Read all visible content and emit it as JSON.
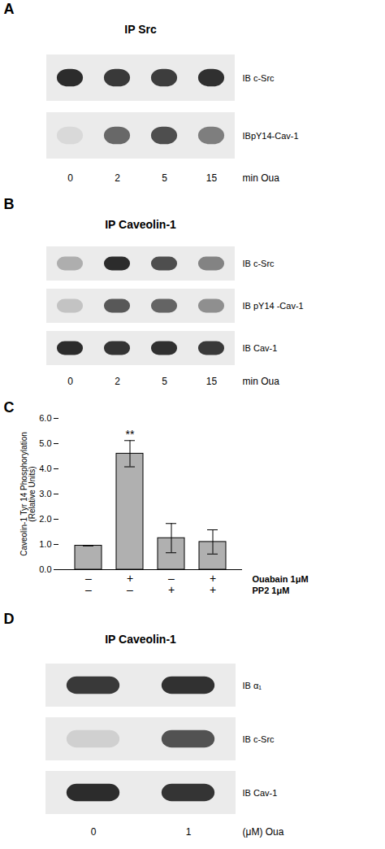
{
  "chart_data": [
    {
      "type": "blot",
      "title": "IP Src",
      "categories": [
        "0",
        "2",
        "5",
        "15"
      ],
      "xlabel": "min Oua",
      "color": "#111111",
      "series": [
        {
          "name": "IB c-Src",
          "values": [
            0.88,
            0.82,
            0.8,
            0.86
          ]
        },
        {
          "name": "IBpY14-Cav-1",
          "values": [
            0.08,
            0.6,
            0.72,
            0.5
          ]
        }
      ],
      "annotations": [
        {
          "text": "A"
        }
      ]
    },
    {
      "type": "blot",
      "title": "IP Caveolin-1",
      "categories": [
        "0",
        "2",
        "5",
        "15"
      ],
      "xlabel": "min Oua",
      "color": "#111111",
      "series": [
        {
          "name": "IB c-Src",
          "values": [
            0.28,
            0.88,
            0.72,
            0.48
          ]
        },
        {
          "name": "IB pY14 -Cav-1",
          "values": [
            0.18,
            0.68,
            0.62,
            0.42
          ]
        },
        {
          "name": "IB Cav-1",
          "values": [
            0.88,
            0.84,
            0.86,
            0.82
          ]
        }
      ],
      "annotations": [
        {
          "text": "B"
        }
      ]
    },
    {
      "type": "bar",
      "categories": [
        "–\n–",
        "+\n–",
        "–\n+",
        "+\n+"
      ],
      "values": [
        0.95,
        4.6,
        1.25,
        1.1
      ],
      "errors": [
        0.0,
        0.52,
        0.58,
        0.48
      ],
      "color": "#b0b0b0",
      "ylabel": "Caveolin-1 Tyr 14 Phosphorylation\n(Relative Units)",
      "ylim": [
        0,
        6
      ],
      "yticks": [
        0,
        1,
        2,
        3,
        4,
        5,
        6
      ],
      "annotations": [
        {
          "text": "C"
        },
        {
          "text": "**",
          "x": "+\n–"
        },
        {
          "text": "Ouabain 1μM"
        },
        {
          "text": "PP2 1μM"
        }
      ]
    },
    {
      "type": "blot",
      "title": "IP Caveolin-1",
      "categories": [
        "0",
        "1"
      ],
      "xlabel": "(μM) Oua",
      "color": "#111111",
      "series": [
        {
          "name": "IB α₁",
          "values": [
            0.82,
            0.85
          ]
        },
        {
          "name": "IB c-Src",
          "values": [
            0.12,
            0.7
          ]
        },
        {
          "name": "IB Cav-1",
          "values": [
            0.88,
            0.84
          ]
        }
      ],
      "annotations": [
        {
          "text": "D"
        }
      ]
    }
  ]
}
